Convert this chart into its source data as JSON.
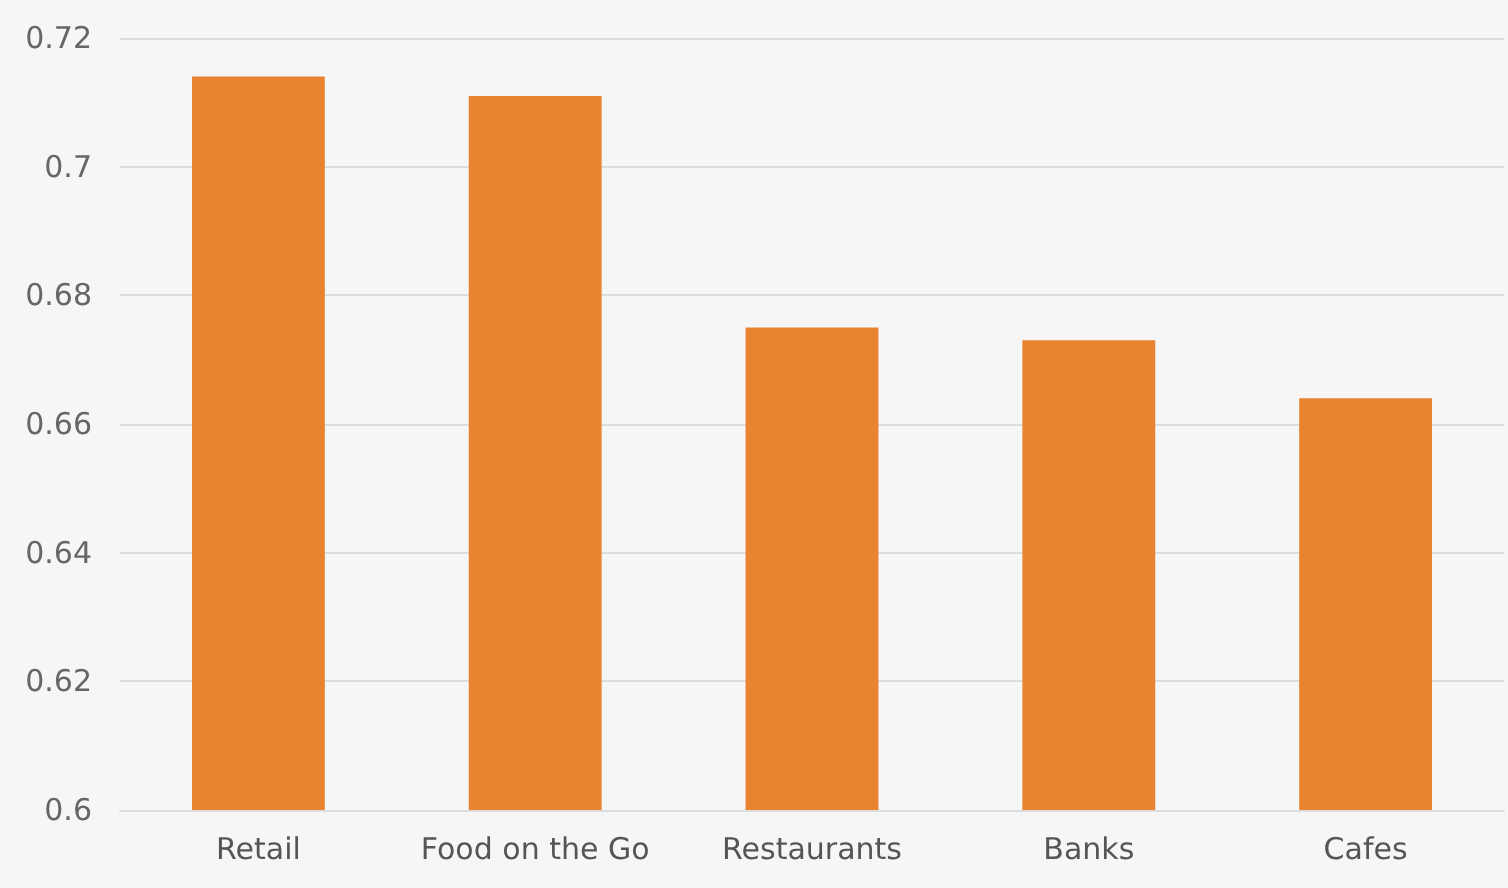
{
  "chart_data": {
    "type": "bar",
    "categories": [
      "Retail",
      "Food on the Go",
      "Restaurants",
      "Banks",
      "Cafes"
    ],
    "values": [
      0.714,
      0.711,
      0.675,
      0.673,
      0.664
    ],
    "color": "#e8832f",
    "ylim": [
      0.6,
      0.72
    ],
    "yticks": [
      0.6,
      0.62,
      0.64,
      0.66,
      0.68,
      0.7,
      0.72
    ],
    "grid": "y"
  }
}
